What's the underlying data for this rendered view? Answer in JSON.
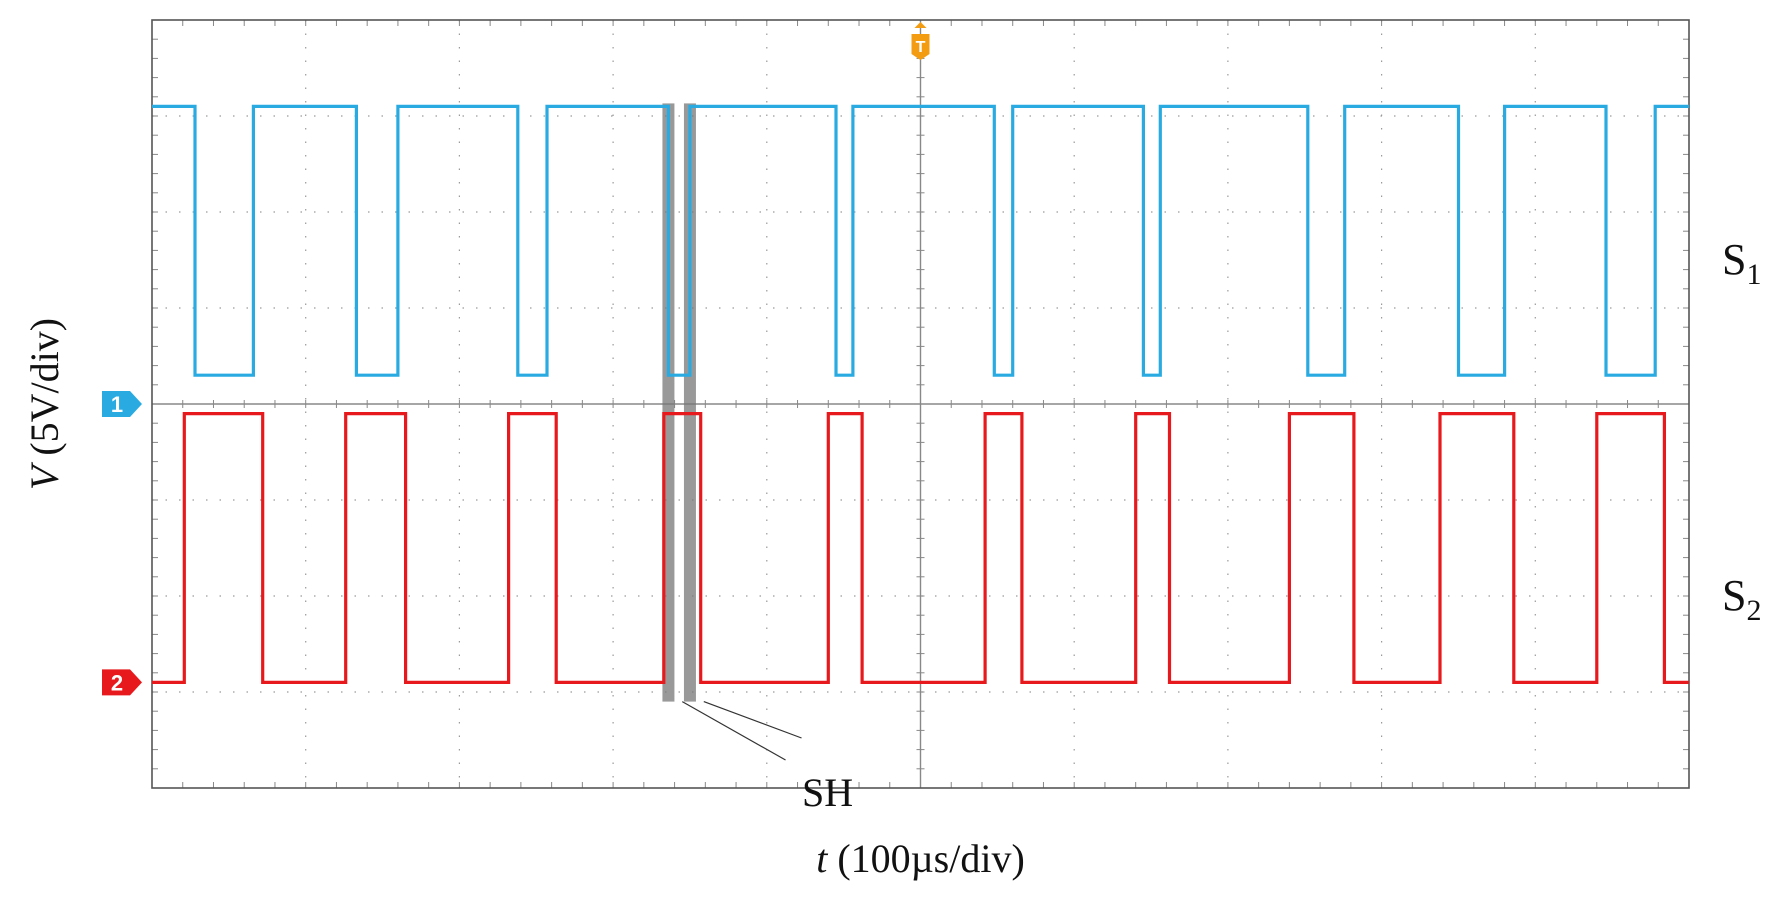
{
  "chart_data": {
    "type": "line",
    "title": "",
    "xlabel": {
      "italic": "t",
      "rest": " (100µs/div)"
    },
    "ylabel": {
      "italic": "V",
      "rest": " (5V/div)"
    },
    "xlim": [
      0,
      10
    ],
    "ylim": [
      -4,
      4
    ],
    "x_units": "div",
    "y_units": "div",
    "grid": true,
    "trigger_marker": {
      "label": "T",
      "x": 5,
      "color": "#f39c12"
    },
    "series": [
      {
        "name": "S",
        "subscript": "1",
        "color": "#29abe2",
        "marker_label": "1",
        "ground_div": 0,
        "high": 3.1,
        "low": 0.3,
        "points": [
          [
            0,
            3.1
          ],
          [
            0.28,
            3.1
          ],
          [
            0.28,
            0.3
          ],
          [
            0.66,
            0.3
          ],
          [
            0.66,
            3.1
          ],
          [
            1.33,
            3.1
          ],
          [
            1.33,
            0.3
          ],
          [
            1.6,
            0.3
          ],
          [
            1.6,
            3.1
          ],
          [
            2.38,
            3.1
          ],
          [
            2.38,
            0.3
          ],
          [
            2.57,
            0.3
          ],
          [
            2.57,
            3.1
          ],
          [
            3.36,
            3.1
          ],
          [
            3.36,
            0.3
          ],
          [
            3.5,
            0.3
          ],
          [
            3.5,
            3.1
          ],
          [
            4.45,
            3.1
          ],
          [
            4.45,
            0.3
          ],
          [
            4.56,
            0.3
          ],
          [
            4.56,
            3.1
          ],
          [
            5.48,
            3.1
          ],
          [
            5.48,
            0.3
          ],
          [
            5.6,
            0.3
          ],
          [
            5.6,
            3.1
          ],
          [
            6.45,
            3.1
          ],
          [
            6.45,
            0.3
          ],
          [
            6.56,
            0.3
          ],
          [
            6.56,
            3.1
          ],
          [
            7.52,
            3.1
          ],
          [
            7.52,
            0.3
          ],
          [
            7.76,
            0.3
          ],
          [
            7.76,
            3.1
          ],
          [
            8.5,
            3.1
          ],
          [
            8.5,
            0.3
          ],
          [
            8.8,
            0.3
          ],
          [
            8.8,
            3.1
          ],
          [
            9.46,
            3.1
          ],
          [
            9.46,
            0.3
          ],
          [
            9.78,
            0.3
          ],
          [
            9.78,
            3.1
          ],
          [
            10,
            3.1
          ]
        ]
      },
      {
        "name": "S",
        "subscript": "2",
        "color": "#e8191c",
        "marker_label": "2",
        "ground_div": -2.9,
        "high": -0.1,
        "low": -2.9,
        "points": [
          [
            0,
            -2.9
          ],
          [
            0.21,
            -2.9
          ],
          [
            0.21,
            -0.1
          ],
          [
            0.72,
            -0.1
          ],
          [
            0.72,
            -2.9
          ],
          [
            1.26,
            -2.9
          ],
          [
            1.26,
            -0.1
          ],
          [
            1.65,
            -0.1
          ],
          [
            1.65,
            -2.9
          ],
          [
            2.32,
            -2.9
          ],
          [
            2.32,
            -0.1
          ],
          [
            2.63,
            -0.1
          ],
          [
            2.63,
            -2.9
          ],
          [
            3.33,
            -2.9
          ],
          [
            3.33,
            -0.1
          ],
          [
            3.57,
            -0.1
          ],
          [
            3.57,
            -2.9
          ],
          [
            4.4,
            -2.9
          ],
          [
            4.4,
            -0.1
          ],
          [
            4.62,
            -0.1
          ],
          [
            4.62,
            -2.9
          ],
          [
            5.42,
            -2.9
          ],
          [
            5.42,
            -0.1
          ],
          [
            5.66,
            -0.1
          ],
          [
            5.66,
            -2.9
          ],
          [
            6.4,
            -2.9
          ],
          [
            6.4,
            -0.1
          ],
          [
            6.62,
            -0.1
          ],
          [
            6.62,
            -2.9
          ],
          [
            7.4,
            -2.9
          ],
          [
            7.4,
            -0.1
          ],
          [
            7.82,
            -0.1
          ],
          [
            7.82,
            -2.9
          ],
          [
            8.38,
            -2.9
          ],
          [
            8.38,
            -0.1
          ],
          [
            8.86,
            -0.1
          ],
          [
            8.86,
            -2.9
          ],
          [
            9.4,
            -2.9
          ],
          [
            9.4,
            -0.1
          ],
          [
            9.84,
            -0.1
          ],
          [
            9.84,
            -2.9
          ],
          [
            10,
            -2.9
          ]
        ]
      }
    ],
    "annotations": [
      {
        "text": "SH",
        "x_from": 3.36,
        "x_to": 3.5,
        "point_a": [
          3.45,
          -3.1
        ],
        "point_b": [
          3.59,
          -3.1
        ],
        "text_at": [
          4.2,
          -4.0
        ]
      }
    ]
  }
}
